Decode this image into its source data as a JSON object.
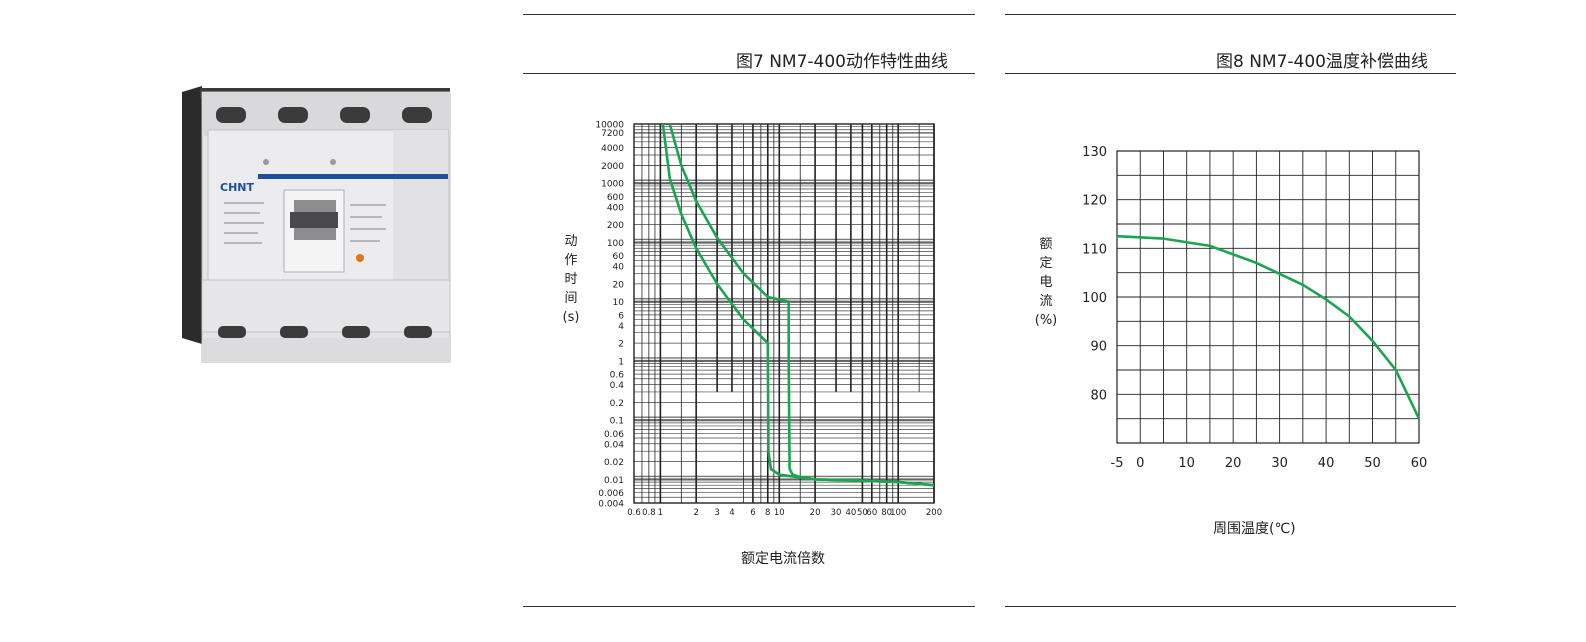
{
  "product": {
    "brand": "CHNT"
  },
  "fig7": {
    "title": "图7 NM7-400动作特性曲线",
    "ylabel": "动作时间(s)",
    "ylabel_chars": [
      "动",
      "作",
      "时",
      "间",
      "(s)"
    ],
    "xlabel": "额定电流倍数"
  },
  "fig8": {
    "title": "图8 NM7-400温度补偿曲线",
    "ylabel": "额定电流(%)",
    "ylabel_chars": [
      "额",
      "定",
      "电",
      "流",
      "(%)"
    ],
    "xlabel": "周围温度(℃)"
  },
  "colors": {
    "curve": "#1aa550",
    "grid": "#222222",
    "band": "#888888"
  },
  "chart_data": [
    {
      "type": "line",
      "title": "图7 NM7-400动作特性曲线",
      "xlabel": "额定电流倍数",
      "ylabel": "动作时间(s)",
      "x_scale": "log",
      "y_scale": "log",
      "xlim": [
        0.6,
        200
      ],
      "ylim": [
        0.004,
        10000
      ],
      "grid": true,
      "x_ticks": [
        "0.6",
        "0.8",
        "1",
        "2",
        "3",
        "4",
        "6",
        "8",
        "10",
        "20",
        "30",
        "40",
        "50",
        "60",
        "80",
        "100",
        "200"
      ],
      "y_ticks": [
        "10000",
        "7200",
        "4000",
        "2000",
        "1000",
        "600",
        "400",
        "200",
        "100",
        "60",
        "40",
        "20",
        "10",
        "6",
        "4",
        "2",
        "1",
        "0.6",
        "0.4",
        "0.2",
        "0.1",
        "0.06",
        "0.04",
        "0.02",
        "0.01",
        "0.006",
        "0.004"
      ],
      "series": [
        {
          "x": [
            1.05,
            1.2,
            1.5,
            2,
            3,
            5,
            8,
            8,
            8.1,
            8.5,
            10,
            20,
            50,
            100,
            200
          ],
          "y": [
            10000,
            1200,
            300,
            80,
            20,
            5,
            2,
            2,
            0.03,
            0.015,
            0.012,
            0.01,
            0.0095,
            0.009,
            0.008
          ]
        },
        {
          "x": [
            1.2,
            1.5,
            2,
            3,
            5,
            8,
            12,
            12,
            12.2,
            13,
            15,
            20,
            50,
            100,
            200
          ],
          "y": [
            10000,
            2000,
            500,
            120,
            30,
            12,
            10,
            1,
            0.015,
            0.012,
            0.011,
            0.01,
            0.0095,
            0.009,
            0.008
          ]
        }
      ]
    },
    {
      "type": "line",
      "title": "图8 NM7-400温度补偿曲线",
      "xlabel": "周围温度(℃)",
      "ylabel": "额定电流(%)",
      "xlim": [
        -5,
        60
      ],
      "ylim": [
        70,
        130
      ],
      "grid": true,
      "x_ticks": [
        "-5",
        "0",
        "10",
        "20",
        "30",
        "40",
        "50",
        "60"
      ],
      "y_ticks": [
        "130",
        "120",
        "110",
        "100",
        "90",
        "80"
      ],
      "x": [
        -5,
        5,
        15,
        25,
        35,
        40,
        45,
        50,
        55,
        60
      ],
      "y": [
        112.5,
        112,
        110.5,
        107,
        102.5,
        99.5,
        96,
        91,
        85,
        75
      ]
    }
  ]
}
